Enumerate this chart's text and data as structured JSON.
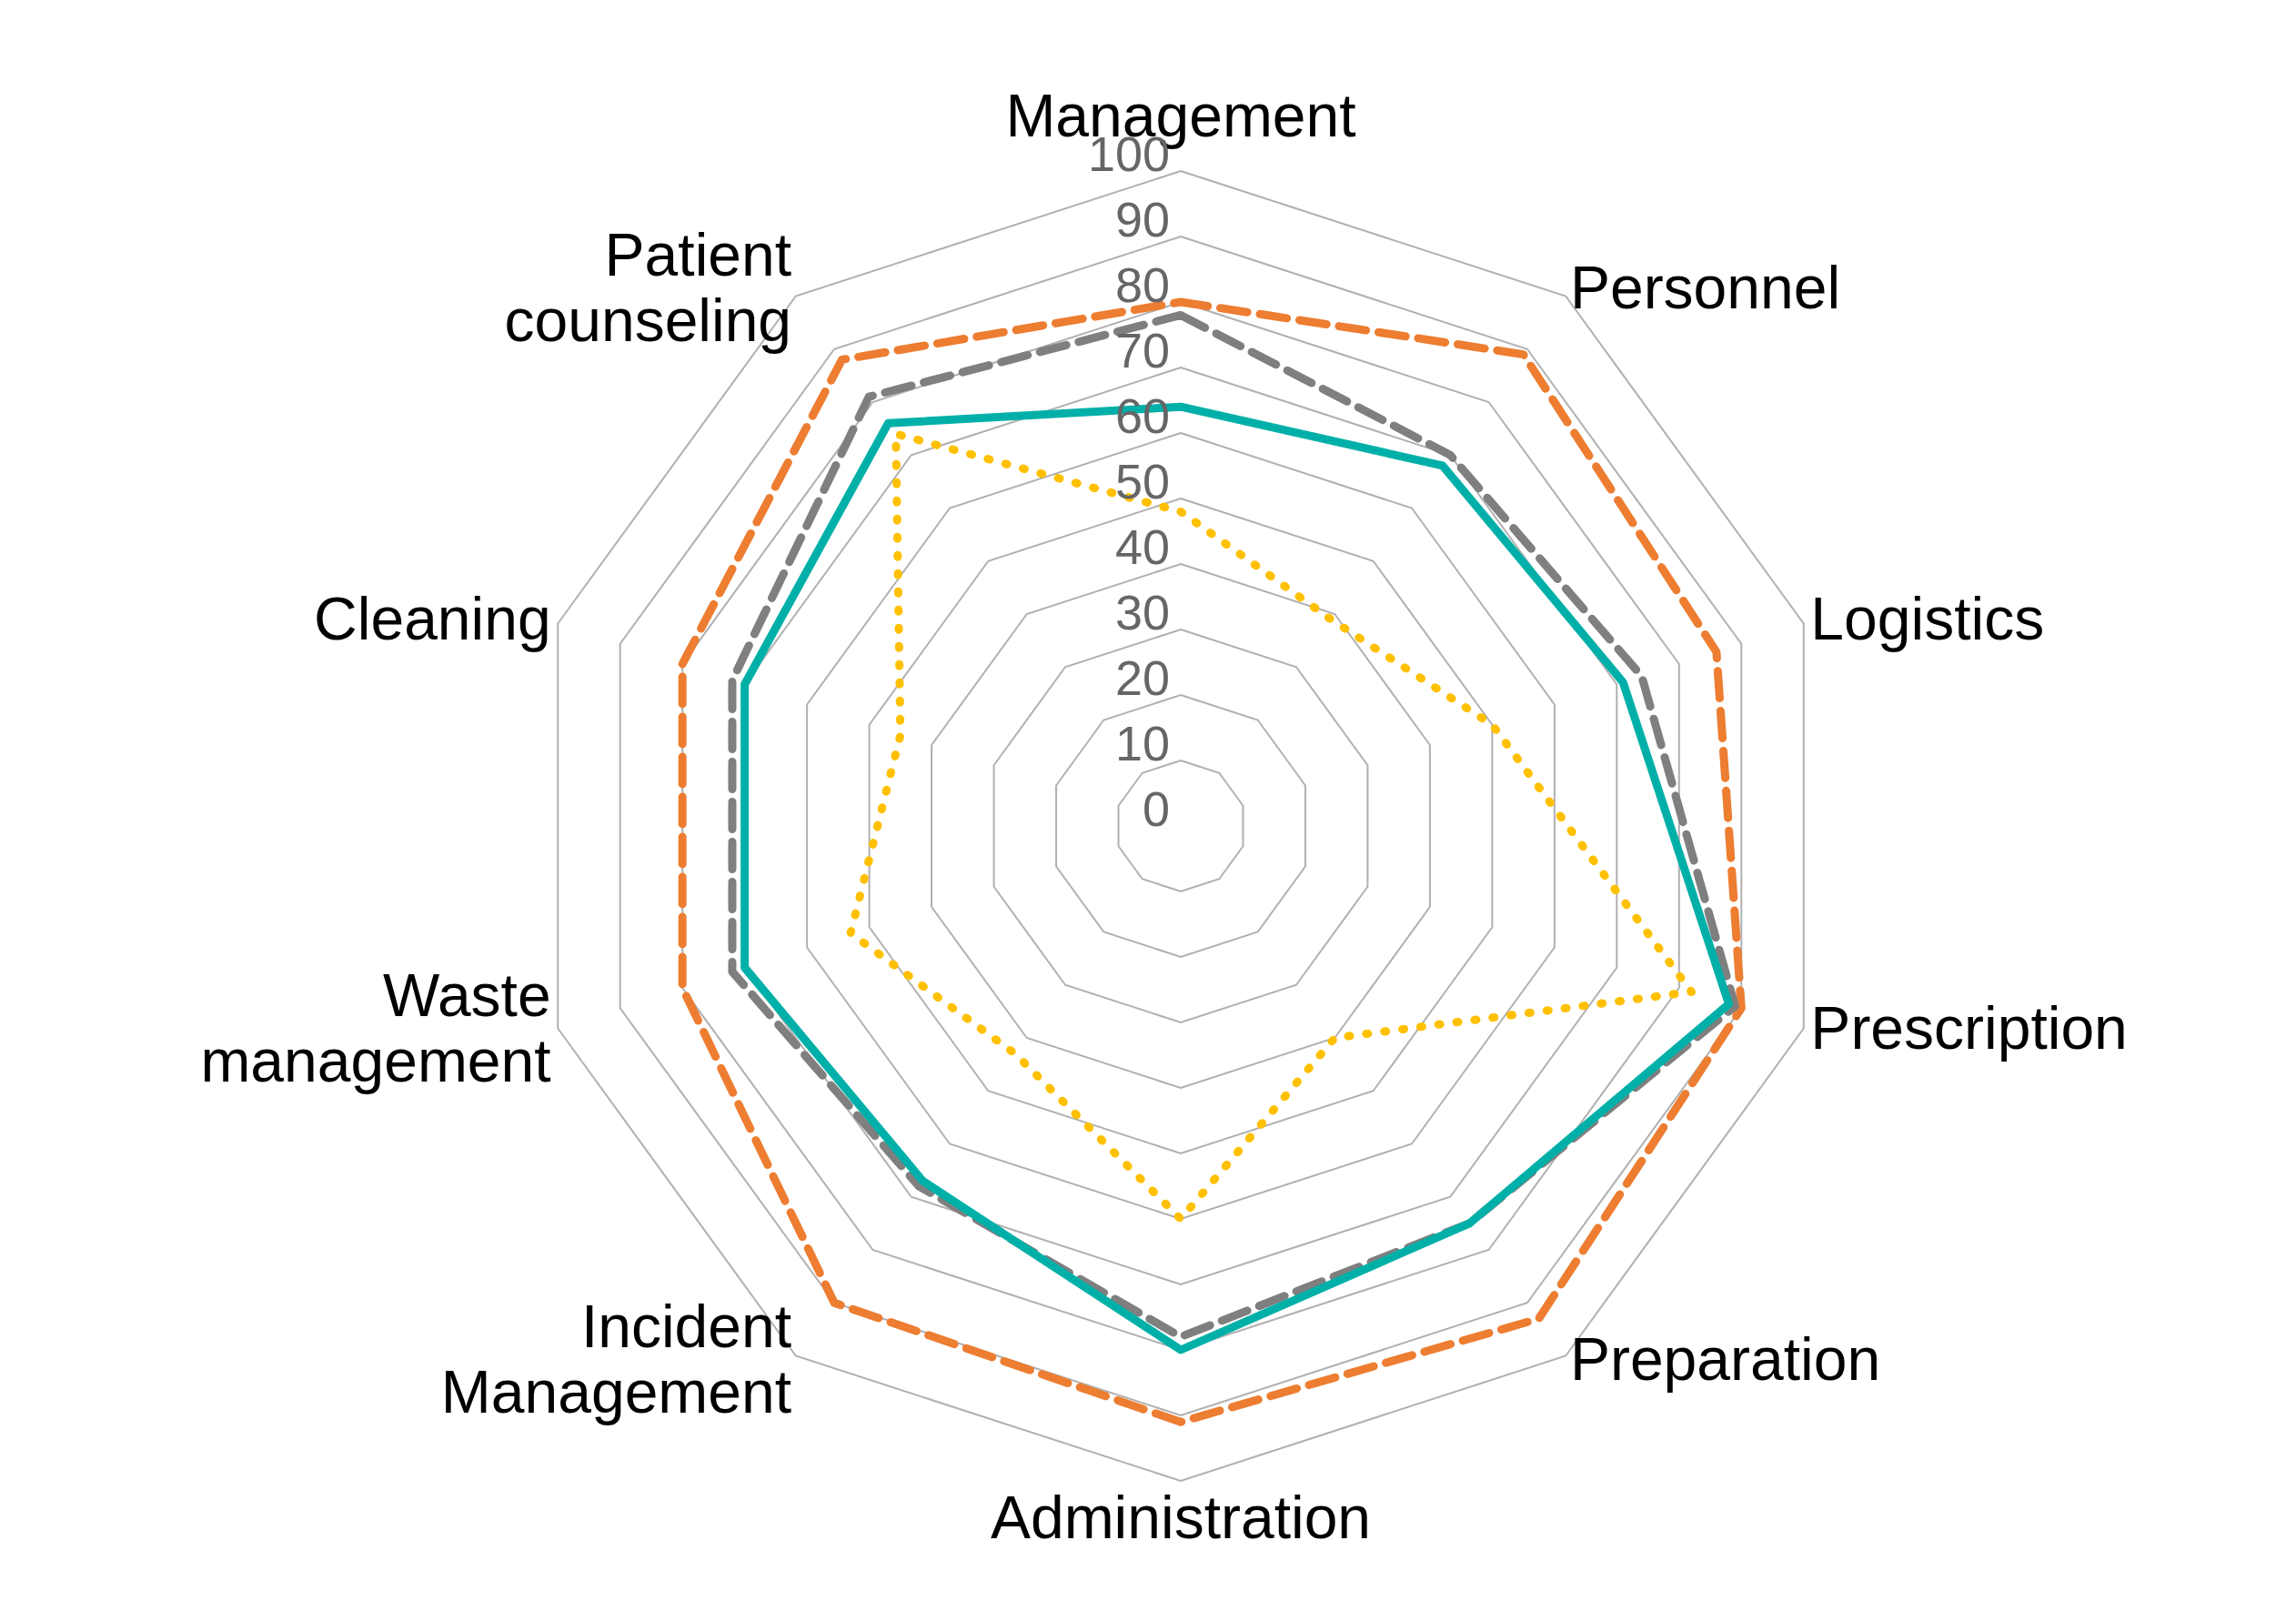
{
  "chart_data": {
    "type": "radar",
    "categories": [
      "Management",
      "Personnel",
      "Logistics",
      "Prescription",
      "Preparation",
      "Administration",
      "Incident Management",
      "Waste management",
      "Cleaning",
      "Patient counseling"
    ],
    "series": [
      {
        "color": "#ed7d31",
        "line_style": "dashed",
        "values": [
          80,
          89,
          86,
          90,
          93,
          91,
          90,
          80,
          80,
          88
        ]
      },
      {
        "color": "#7f7f7f",
        "line_style": "dashed",
        "values": [
          78,
          70,
          74,
          89,
          75,
          78,
          68,
          72,
          72,
          81
        ]
      },
      {
        "color": "#00b0a8",
        "line_style": "solid",
        "values": [
          64,
          68,
          71,
          88,
          75,
          80,
          67,
          70,
          70,
          76
        ]
      },
      {
        "color": "#ffc000",
        "line_style": "dotted",
        "values": [
          48,
          39,
          50,
          82,
          40,
          60,
          43,
          53,
          45,
          74
        ]
      }
    ],
    "ylim": [
      0,
      100
    ],
    "yticks": [
      0,
      10,
      20,
      30,
      40,
      50,
      60,
      70,
      80,
      90,
      100
    ],
    "grid": true,
    "marker": "none"
  }
}
